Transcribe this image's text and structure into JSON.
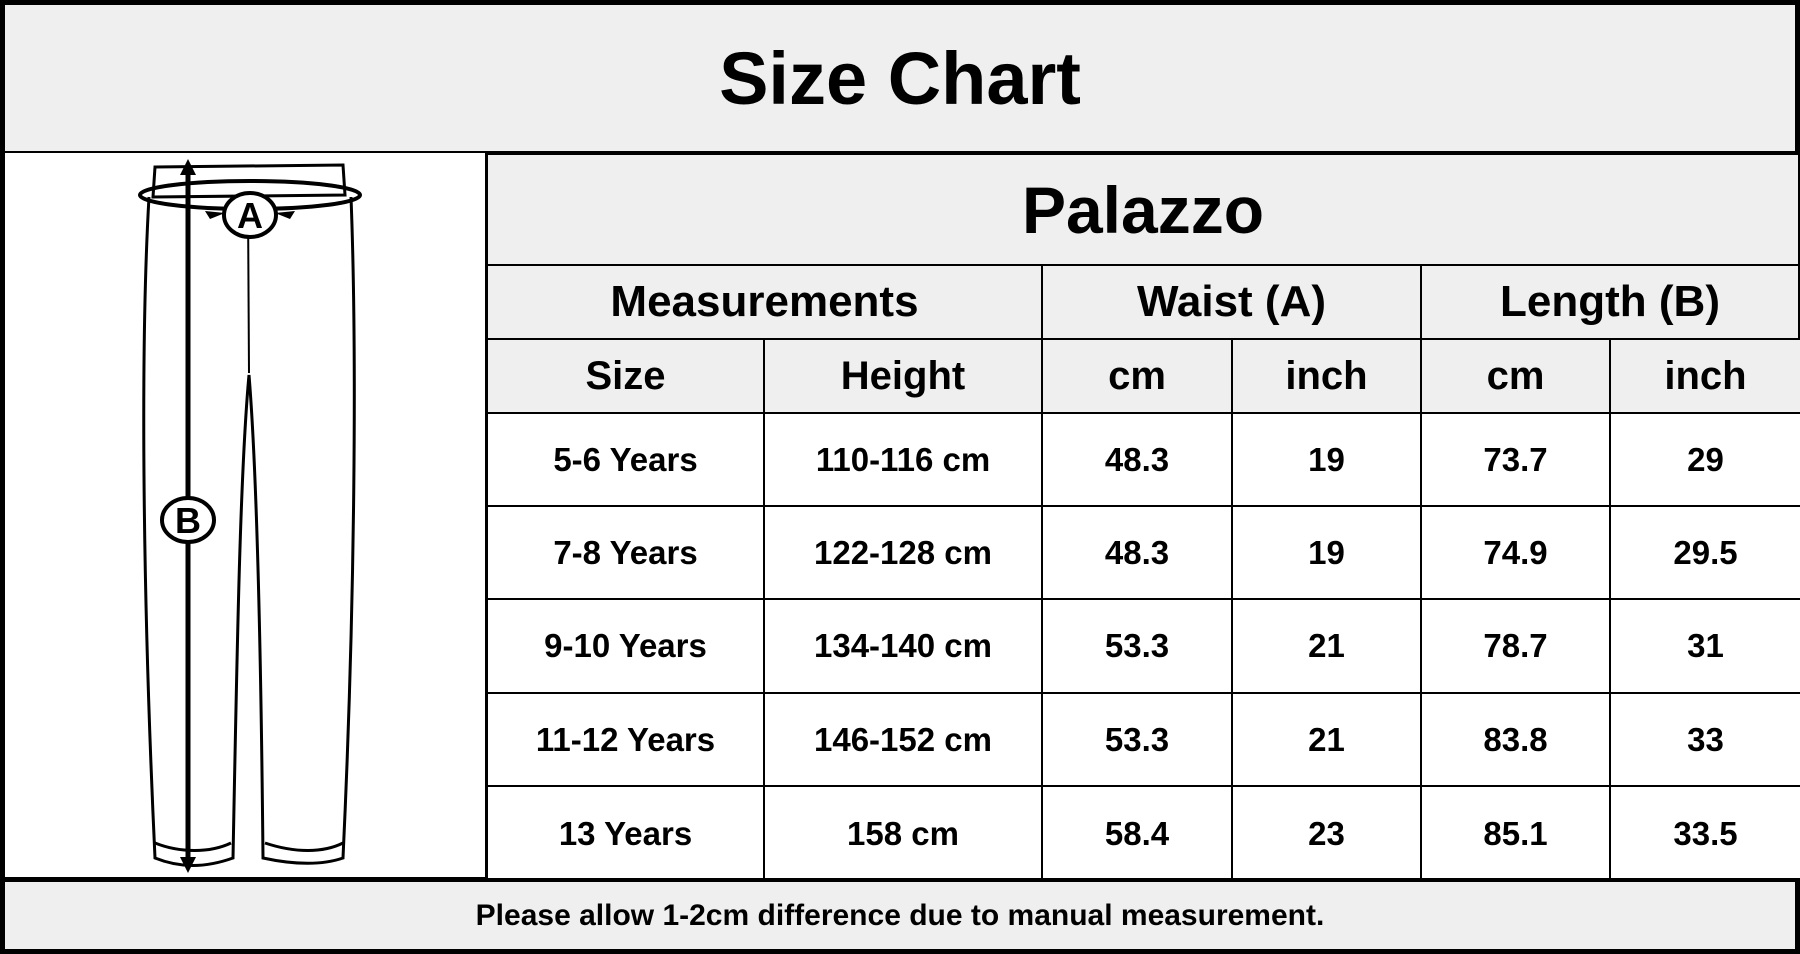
{
  "title": "Size Chart",
  "product": "Palazzo",
  "illustration": {
    "waist_label": "A",
    "length_label": "B"
  },
  "header_groups": [
    "Measurements",
    "Waist (A)",
    "Length (B)"
  ],
  "columns": [
    "Size",
    "Height",
    "cm",
    "inch",
    "cm",
    "inch"
  ],
  "rows": [
    [
      "5-6 Years",
      "110-116 cm",
      "48.3",
      "19",
      "73.7",
      "29"
    ],
    [
      "7-8 Years",
      "122-128 cm",
      "48.3",
      "19",
      "74.9",
      "29.5"
    ],
    [
      "9-10 Years",
      "134-140 cm",
      "53.3",
      "21",
      "78.7",
      "31"
    ],
    [
      "11-12 Years",
      "146-152 cm",
      "53.3",
      "21",
      "83.8",
      "33"
    ],
    [
      "13 Years",
      "158 cm",
      "58.4",
      "23",
      "85.1",
      "33.5"
    ]
  ],
  "footer_note": "Please allow 1-2cm difference due to manual measurement."
}
